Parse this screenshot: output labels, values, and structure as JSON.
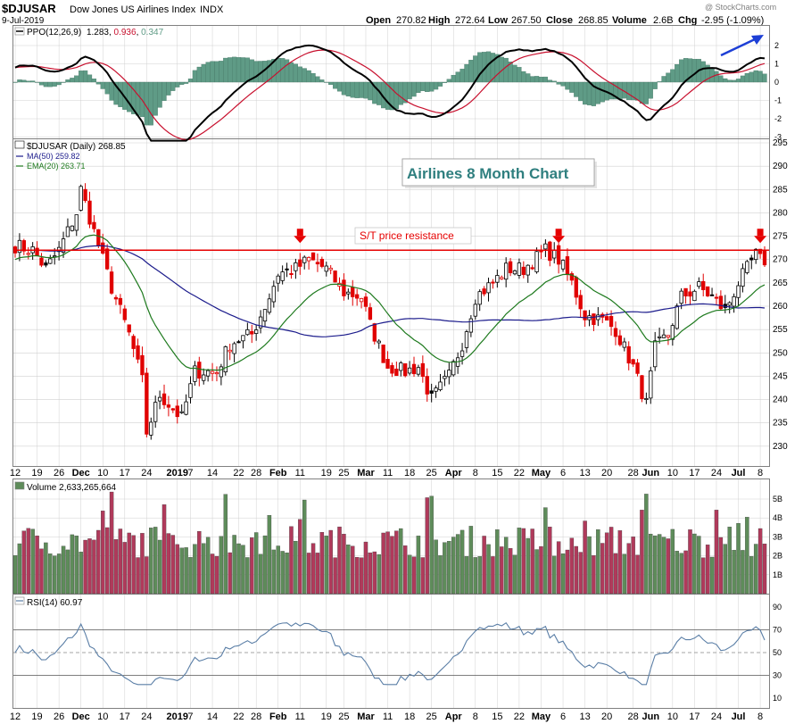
{
  "header": {
    "symbol": "$DJUSAR",
    "name": "Dow Jones US Airlines Index",
    "exchange": "INDX",
    "date": "9-Jul-2019",
    "open_label": "Open",
    "open": "270.82",
    "high_label": "High",
    "high": "272.64",
    "low_label": "Low",
    "low": "267.50",
    "close_label": "Close",
    "close": "268.85",
    "volume_label": "Volume",
    "volume": "2.6B",
    "chg_label": "Chg",
    "chg": "-2.95 (-1.09%)",
    "watermark": "@ StockCharts.com"
  },
  "colors": {
    "up": "#ffffff",
    "down": "#e00000",
    "wick": "#000000",
    "ma50": "#1c1c8c",
    "ema20": "#1e7a1e",
    "ppo_line": "#000000",
    "ppo_signal": "#c8102e",
    "ppo_hist": "#5f9b86",
    "vol_up": "#5e8c5a",
    "vol_down": "#b03a5b",
    "resistance": "#e60000",
    "annot_title": "#2f7f7f",
    "blue_arrow": "#1d3fd6",
    "rsi_line": "#5a7ea6",
    "grid": "#d0d0d0",
    "frame": "#808080"
  },
  "ppo": {
    "label_prefix": "PPO(12,26,9)",
    "v1": "1.283",
    "v2": "0.936",
    "v3": "0.347",
    "ticks": [
      "2",
      "1",
      "0",
      "-1",
      "-2",
      "-3"
    ]
  },
  "price": {
    "label": "$DJUSAR (Daily) 268.85",
    "ma_label": "MA(50) 259.82",
    "ema_label": "EMA(20) 263.71",
    "ticks": [
      "295",
      "290",
      "285",
      "280",
      "275",
      "270",
      "265",
      "260",
      "255",
      "250",
      "245",
      "240",
      "235",
      "230"
    ]
  },
  "annotations": {
    "title": "Airlines 8 Month Chart",
    "resistance_label": "S/T price resistance"
  },
  "volume_panel": {
    "label": "Volume 2,633,265,664",
    "ticks": [
      "5B",
      "4B",
      "3B",
      "2B",
      "1B"
    ]
  },
  "rsi_panel": {
    "label": "RSI(14) 60.97",
    "ticks": [
      "90",
      "70",
      "50",
      "30",
      "10"
    ]
  },
  "xaxis": {
    "labels": [
      "12",
      "19",
      "26",
      "Dec",
      "10",
      "17",
      "24",
      "2019",
      "7",
      "14",
      "22",
      "28",
      "Feb",
      "11",
      "19",
      "25",
      "Mar",
      "11",
      "18",
      "25",
      "Apr",
      "8",
      "15",
      "22",
      "May",
      "6",
      "13",
      "20",
      "28",
      "Jun",
      "10",
      "17",
      "24",
      "Jul",
      "8"
    ],
    "bold": [
      "Dec",
      "2019",
      "Feb",
      "Mar",
      "Apr",
      "May",
      "Jun",
      "Jul"
    ]
  },
  "chart_data": {
    "type": "candlestick",
    "title": "Airlines 8 Month Chart",
    "symbol": "$DJUSAR",
    "price_range": [
      225,
      295
    ],
    "resistance_level": 272,
    "close_anchors": [
      {
        "x": "Nov 12",
        "y": 273
      },
      {
        "x": "Nov 16",
        "y": 272
      },
      {
        "x": "Nov 21",
        "y": 268
      },
      {
        "x": "Nov 26",
        "y": 272
      },
      {
        "x": "Nov 30",
        "y": 280
      },
      {
        "x": "Dec 3",
        "y": 285
      },
      {
        "x": "Dec 6",
        "y": 276
      },
      {
        "x": "Dec 12",
        "y": 264
      },
      {
        "x": "Dec 18",
        "y": 254
      },
      {
        "x": "Dec 21",
        "y": 244
      },
      {
        "x": "Dec 24",
        "y": 233
      },
      {
        "x": "Dec 27",
        "y": 241
      },
      {
        "x": "Jan 3",
        "y": 236
      },
      {
        "x": "Jan 8",
        "y": 246
      },
      {
        "x": "Jan 15",
        "y": 246
      },
      {
        "x": "Jan 18",
        "y": 252
      },
      {
        "x": "Jan 25",
        "y": 254
      },
      {
        "x": "Jan 31",
        "y": 262
      },
      {
        "x": "Feb 4",
        "y": 267
      },
      {
        "x": "Feb 8",
        "y": 268
      },
      {
        "x": "Feb 13",
        "y": 270
      },
      {
        "x": "Feb 19",
        "y": 268
      },
      {
        "x": "Feb 25",
        "y": 263
      },
      {
        "x": "Mar 1",
        "y": 262
      },
      {
        "x": "Mar 5",
        "y": 256
      },
      {
        "x": "Mar 11",
        "y": 247
      },
      {
        "x": "Mar 15",
        "y": 246
      },
      {
        "x": "Mar 20",
        "y": 247
      },
      {
        "x": "Mar 25",
        "y": 240
      },
      {
        "x": "Mar 29",
        "y": 245
      },
      {
        "x": "Apr 3",
        "y": 252
      },
      {
        "x": "Apr 8",
        "y": 262
      },
      {
        "x": "Apr 12",
        "y": 265
      },
      {
        "x": "Apr 17",
        "y": 268
      },
      {
        "x": "Apr 23",
        "y": 268
      },
      {
        "x": "Apr 30",
        "y": 272
      },
      {
        "x": "May 3",
        "y": 270
      },
      {
        "x": "May 8",
        "y": 265
      },
      {
        "x": "May 13",
        "y": 258
      },
      {
        "x": "May 17",
        "y": 257
      },
      {
        "x": "May 22",
        "y": 255
      },
      {
        "x": "May 28",
        "y": 247
      },
      {
        "x": "May 31",
        "y": 239
      },
      {
        "x": "Jun 4",
        "y": 251
      },
      {
        "x": "Jun 7",
        "y": 254
      },
      {
        "x": "Jun 12",
        "y": 262
      },
      {
        "x": "Jun 18",
        "y": 264
      },
      {
        "x": "Jun 21",
        "y": 262
      },
      {
        "x": "Jun 26",
        "y": 259
      },
      {
        "x": "Jul 1",
        "y": 265
      },
      {
        "x": "Jul 5",
        "y": 271
      },
      {
        "x": "Jul 9",
        "y": 268.85
      }
    ],
    "ma50_end": 259.82,
    "ema20_end": 263.71,
    "ppo_values": {
      "ppo": 1.283,
      "signal": 0.936,
      "histogram": 0.347,
      "range": [
        -3,
        2
      ]
    },
    "volume_last": 2633265664,
    "volume_range": [
      0,
      6000000000
    ],
    "rsi_last": 60.97,
    "rsi_levels": [
      30,
      50,
      70
    ],
    "resistance_arrows_at": [
      "Feb 11",
      "May 3",
      "Jul 8"
    ]
  }
}
